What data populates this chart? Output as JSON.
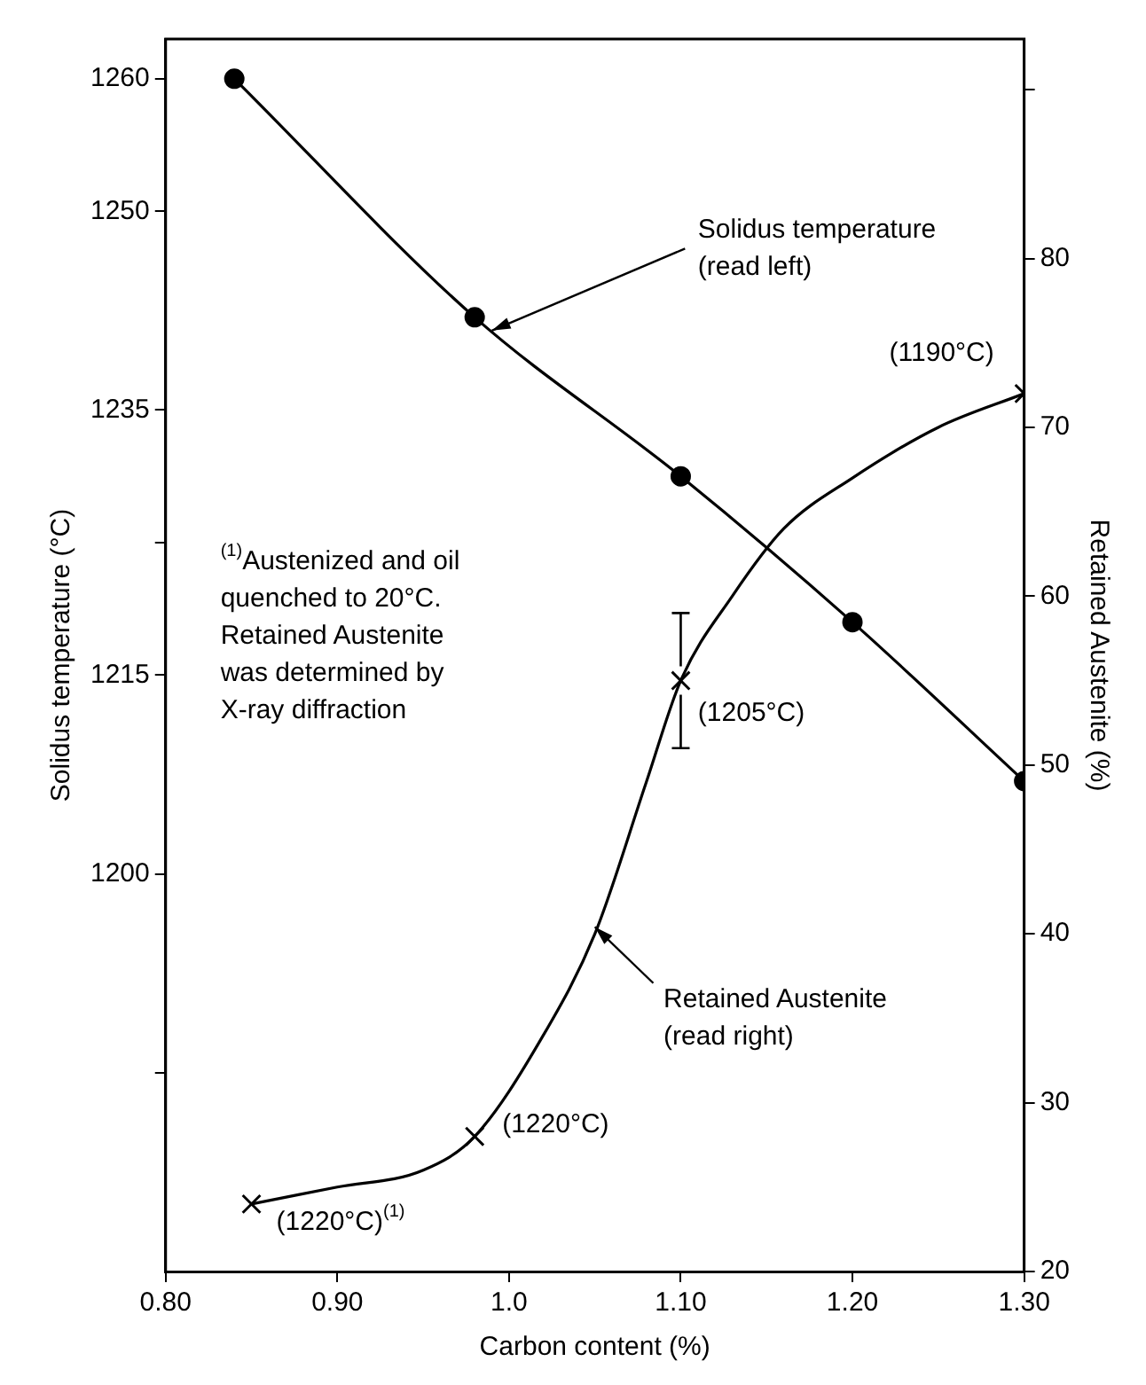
{
  "chart_data": {
    "type": "line",
    "xlabel": "Carbon content (%)",
    "ylabel": "Solidus temperature (°C)",
    "y2label": "Retained Austenite (%)",
    "xlim": [
      0.8,
      1.3
    ],
    "xticks": [
      {
        "value": 0.8,
        "label": "0.80"
      },
      {
        "value": 0.9,
        "label": "0.90"
      },
      {
        "value": 1.0,
        "label": "1.0"
      },
      {
        "value": 1.1,
        "label": "1.10"
      },
      {
        "value": 1.2,
        "label": "1.20"
      },
      {
        "value": 1.3,
        "label": "1.30"
      }
    ],
    "ylim": [
      1170,
      1263
    ],
    "yticks": [
      1260,
      1250,
      1235,
      {
        "value": 1225,
        "label": null
      },
      1215,
      1200,
      {
        "value": 1185,
        "label": null
      }
    ],
    "y2lim": [
      20,
      93
    ],
    "y2ticks": [
      20,
      30,
      40,
      50,
      60,
      70,
      80,
      {
        "value": 90,
        "label": null
      }
    ],
    "grid": false,
    "legend": false,
    "series": [
      {
        "color": "#000000",
        "marker": "circle",
        "x": [
          0.84,
          0.98,
          1.1,
          1.2,
          1.3
        ],
        "values": [
          1260,
          1242,
          1230,
          1219,
          1207
        ]
      },
      {
        "type": "line",
        "axis": "y2",
        "color": "#000000",
        "marker": "none",
        "x": [
          0.85,
          0.9,
          0.95,
          0.98,
          1.02,
          1.05,
          1.08,
          1.1,
          1.13,
          1.16,
          1.2,
          1.25,
          1.3
        ],
        "values": [
          24,
          25,
          26,
          28,
          34,
          40,
          49,
          55,
          60,
          64,
          67,
          70,
          72
        ]
      },
      {
        "type": "scatter",
        "axis": "y2",
        "color": "#000000",
        "marker": "cross",
        "x": [
          0.85,
          0.98,
          1.1,
          1.3
        ],
        "values": [
          24,
          28,
          55,
          72
        ],
        "errors": [
          null,
          null,
          [
            51,
            59
          ],
          null
        ]
      }
    ],
    "annotations": [
      {
        "text": "Solidus temperature\n(read left)",
        "x": 0.99,
        "y": 1241
      },
      {
        "text": "Retained Austenite\n(read right)",
        "x": 1.05,
        "y": 1196
      },
      "$^{(1)}$Austenized and oil\nquenched to 20°C.\nRetained Austenite\nwas determined by\nX-ray diffraction",
      "(1190°C)",
      "(1205°C)",
      "(1220°C)",
      "(1220°C)$^{(1)}$"
    ]
  }
}
